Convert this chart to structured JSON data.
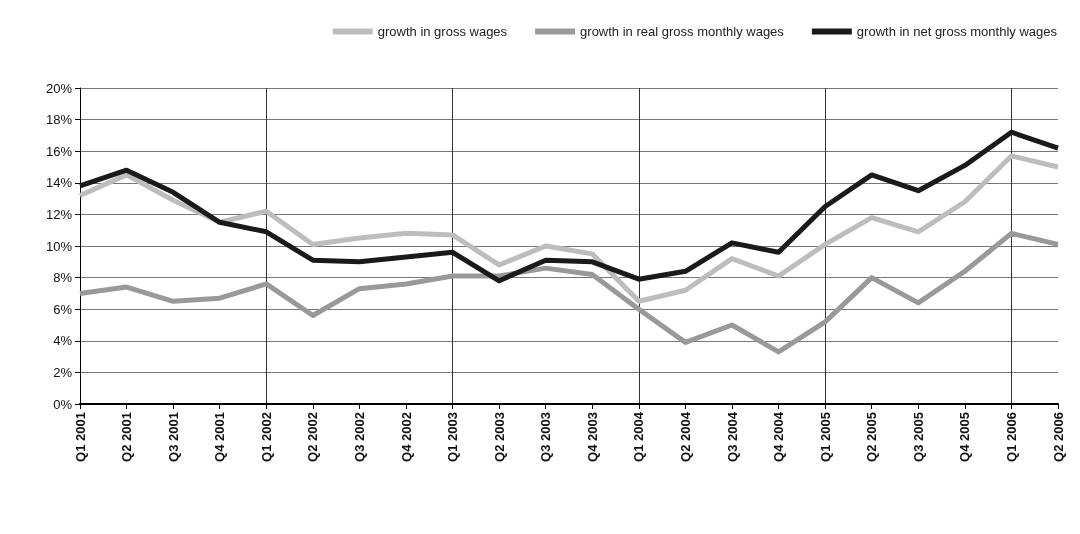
{
  "chart_data": {
    "type": "line",
    "categories": [
      "Q1 2001",
      "Q2 2001",
      "Q3 2001",
      "Q4 2001",
      "Q1 2002",
      "Q2 2002",
      "Q3 2002",
      "Q4 2002",
      "Q1 2003",
      "Q2 2003",
      "Q3 2003",
      "Q4 2003",
      "Q1 2004",
      "Q2 2004",
      "Q3 2004",
      "Q4 2004",
      "Q1 2005",
      "Q2 2005",
      "Q3 2005",
      "Q4 2005",
      "Q1 2006",
      "Q2 2006"
    ],
    "series": [
      {
        "name": "growth in gross wages",
        "color": "#bdbdbd",
        "values": [
          13.2,
          14.5,
          12.9,
          11.5,
          12.2,
          10.1,
          10.5,
          10.8,
          10.7,
          8.8,
          10.0,
          9.5,
          6.5,
          7.2,
          9.2,
          8.1,
          10.1,
          11.8,
          10.9,
          12.8,
          15.7,
          15.0
        ]
      },
      {
        "name": "growth in real gross monthly wages",
        "color": "#999999",
        "values": [
          7.0,
          7.4,
          6.5,
          6.7,
          7.6,
          5.6,
          7.3,
          7.6,
          8.1,
          8.1,
          8.6,
          8.2,
          6.0,
          3.9,
          5.0,
          3.3,
          5.2,
          8.0,
          6.4,
          8.4,
          10.8,
          10.1
        ]
      },
      {
        "name": "growth in net gross monthly wages",
        "color": "#1a1a1a",
        "values": [
          13.8,
          14.8,
          13.4,
          11.5,
          10.9,
          9.1,
          9.0,
          9.3,
          9.6,
          7.8,
          9.1,
          9.0,
          7.9,
          8.4,
          10.2,
          9.6,
          12.5,
          14.5,
          13.5,
          15.1,
          17.2,
          16.2
        ]
      }
    ],
    "ylim": [
      0,
      20
    ],
    "yticks": [
      {
        "value": 0,
        "label": "0%"
      },
      {
        "value": 2,
        "label": "2%"
      },
      {
        "value": 4,
        "label": "4%"
      },
      {
        "value": 6,
        "label": "6%"
      },
      {
        "value": 8,
        "label": "8%"
      },
      {
        "value": 10,
        "label": "10%"
      },
      {
        "value": 12,
        "label": "12%"
      },
      {
        "value": 14,
        "label": "14%"
      },
      {
        "value": 16,
        "label": "16%"
      },
      {
        "value": 18,
        "label": "18%"
      },
      {
        "value": 20,
        "label": "20%"
      }
    ],
    "grid": true,
    "legend": "top",
    "marker": "none",
    "line_style": "solid"
  }
}
